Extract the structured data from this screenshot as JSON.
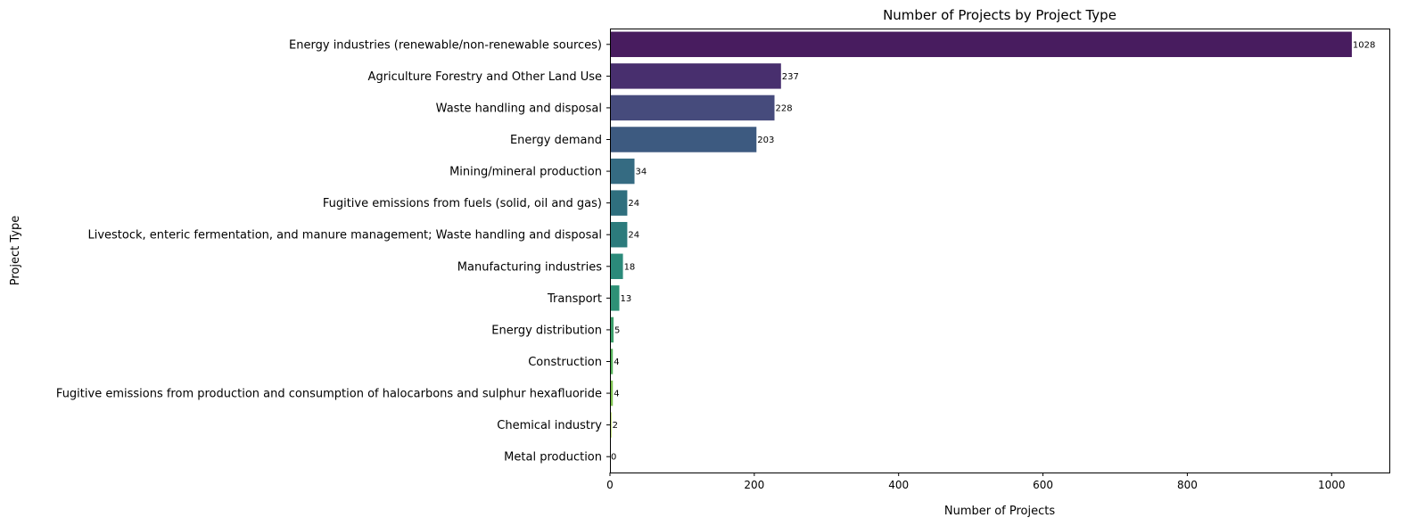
{
  "chart_data": {
    "type": "bar",
    "orientation": "horizontal",
    "title": "Number of Projects by Project Type",
    "xlabel": "Number of Projects",
    "ylabel": "Project Type",
    "xlim": [
      0,
      1080
    ],
    "xticks": [
      0,
      200,
      400,
      600,
      800,
      1000
    ],
    "grid": false,
    "categories": [
      "Energy industries (renewable/non-renewable sources)",
      "Agriculture Forestry and Other Land Use",
      "Waste handling and disposal",
      "Energy demand",
      "Mining/mineral production",
      "Fugitive emissions from fuels (solid, oil and gas)",
      "Livestock, enteric fermentation, and manure management; Waste handling and disposal",
      "Manufacturing industries",
      "Transport",
      "Energy distribution",
      "Construction",
      "Fugitive emissions from production and consumption of halocarbons and sulphur hexafluoride",
      "Chemical industry",
      "Metal production"
    ],
    "values": [
      1028,
      237,
      228,
      203,
      34,
      24,
      24,
      18,
      13,
      5,
      4,
      4,
      2,
      0
    ],
    "colors": [
      "#481c5f",
      "#482f6e",
      "#464b7c",
      "#3d5a80",
      "#356b82",
      "#2f6f7e",
      "#2c7b7c",
      "#2b8a7a",
      "#2e9176",
      "#3ea06c",
      "#58b45c",
      "#7fc350",
      "#a6cf3d",
      "#d1d93a"
    ]
  }
}
